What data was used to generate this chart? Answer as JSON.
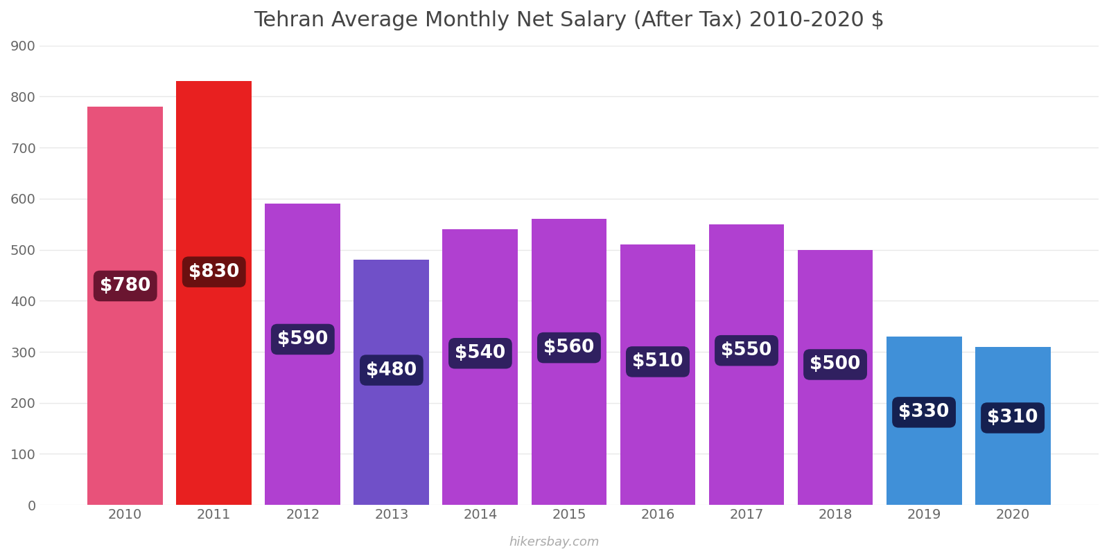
{
  "title": "Tehran Average Monthly Net Salary (After Tax) 2010-2020 $",
  "years": [
    2010,
    2011,
    2012,
    2013,
    2014,
    2015,
    2016,
    2017,
    2018,
    2019,
    2020
  ],
  "values": [
    780,
    830,
    590,
    480,
    540,
    560,
    510,
    550,
    500,
    330,
    310
  ],
  "bar_colors": [
    "#e8527a",
    "#e82020",
    "#b040d0",
    "#7050c8",
    "#b040d0",
    "#b040d0",
    "#b040d0",
    "#b040d0",
    "#b040d0",
    "#4090d8",
    "#4090d8"
  ],
  "label_bg_colors": [
    "#6a1530",
    "#6a1010",
    "#302060",
    "#252060",
    "#302060",
    "#302060",
    "#302060",
    "#302060",
    "#302060",
    "#152050",
    "#152050"
  ],
  "labels": [
    "$780",
    "$830",
    "$590",
    "$480",
    "$540",
    "$560",
    "$510",
    "$550",
    "$500",
    "$330",
    "$310"
  ],
  "ylim": [
    0,
    900
  ],
  "yticks": [
    0,
    100,
    200,
    300,
    400,
    500,
    600,
    700,
    800,
    900
  ],
  "title_fontsize": 22,
  "tick_fontsize": 14,
  "label_fontsize": 19,
  "watermark": "hikersbay.com",
  "background_color": "#ffffff",
  "grid_color": "#e8e8e8",
  "bar_width": 0.85
}
